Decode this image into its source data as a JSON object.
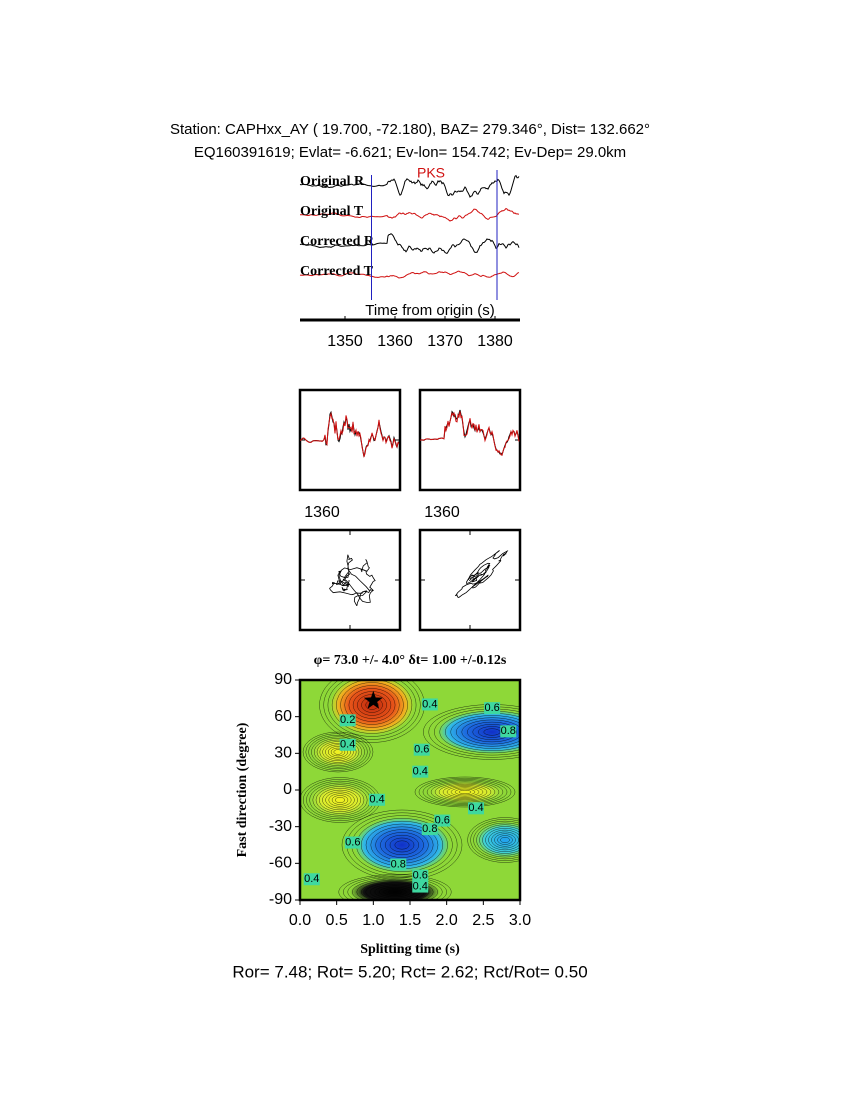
{
  "header": {
    "station": "Station: CAPHxx_AY (  19.700,  -72.180), BAZ=  279.346°, Dist=  132.662°",
    "event": "EQ160391619; Evlat=  -6.621; Ev-lon= 154.742; Ev-Dep= 29.0km"
  },
  "chart_data": [
    {
      "type": "waveform",
      "x_label": "Time from origin (s)",
      "phase": "PKS",
      "traces": [
        "Original R",
        "Original T",
        "Corrected R",
        "Corrected T"
      ],
      "xlim": [
        1341,
        1385
      ],
      "xticks": [
        1350,
        1360,
        1370,
        1380
      ],
      "window": [
        1355.3,
        1380.4
      ]
    },
    {
      "type": "waveform-comparison",
      "xticks": [
        1360
      ]
    },
    {
      "type": "contour",
      "title": "φ= 73.0 +/- 4.0° δt= 1.00 +/-0.12s",
      "x_label": "Splitting time (s)",
      "y_label": "Fast direction (degree)",
      "xlim": [
        0,
        3
      ],
      "ylim": [
        -90,
        90
      ],
      "xticks": [
        {
          "value": 0,
          "label": "0.0"
        },
        0.5,
        {
          "value": 1,
          "label": "1.0"
        },
        1.5,
        {
          "value": 2,
          "label": "2.0"
        },
        2.5,
        {
          "value": 3,
          "label": "3.0"
        }
      ],
      "yticks": [
        -90,
        -60,
        -30,
        0,
        30,
        60,
        90
      ],
      "best": {
        "x": 1.0,
        "y": 73
      },
      "contour_labels": [
        {
          "value": 0.4,
          "x": 1.77,
          "y": 70
        },
        {
          "value": 0.6,
          "x": 2.62,
          "y": 67
        },
        {
          "value": 0.8,
          "x": 2.84,
          "y": 48
        },
        {
          "value": 0.2,
          "x": 0.65,
          "y": 57
        },
        {
          "value": 0.4,
          "x": 0.65,
          "y": 37
        },
        {
          "value": 0.6,
          "x": 1.66,
          "y": 33
        },
        {
          "value": 0.4,
          "x": 1.64,
          "y": 15
        },
        {
          "value": 0.4,
          "x": 1.05,
          "y": -8
        },
        {
          "value": 0.4,
          "x": 2.4,
          "y": -15
        },
        {
          "value": 0.6,
          "x": 1.94,
          "y": -25
        },
        {
          "value": 0.8,
          "x": 1.77,
          "y": -32
        },
        {
          "value": 0.6,
          "x": 0.72,
          "y": -43
        },
        {
          "value": 0.8,
          "x": 1.34,
          "y": -61
        },
        {
          "value": 0.6,
          "x": 1.64,
          "y": -70
        },
        {
          "value": 0.4,
          "x": 1.64,
          "y": -79
        },
        {
          "value": 0.4,
          "x": 0.16,
          "y": -73
        }
      ]
    }
  ],
  "footer": "Ror= 7.48; Rot= 5.20; Rct= 2.62; Rct/Rot= 0.50"
}
